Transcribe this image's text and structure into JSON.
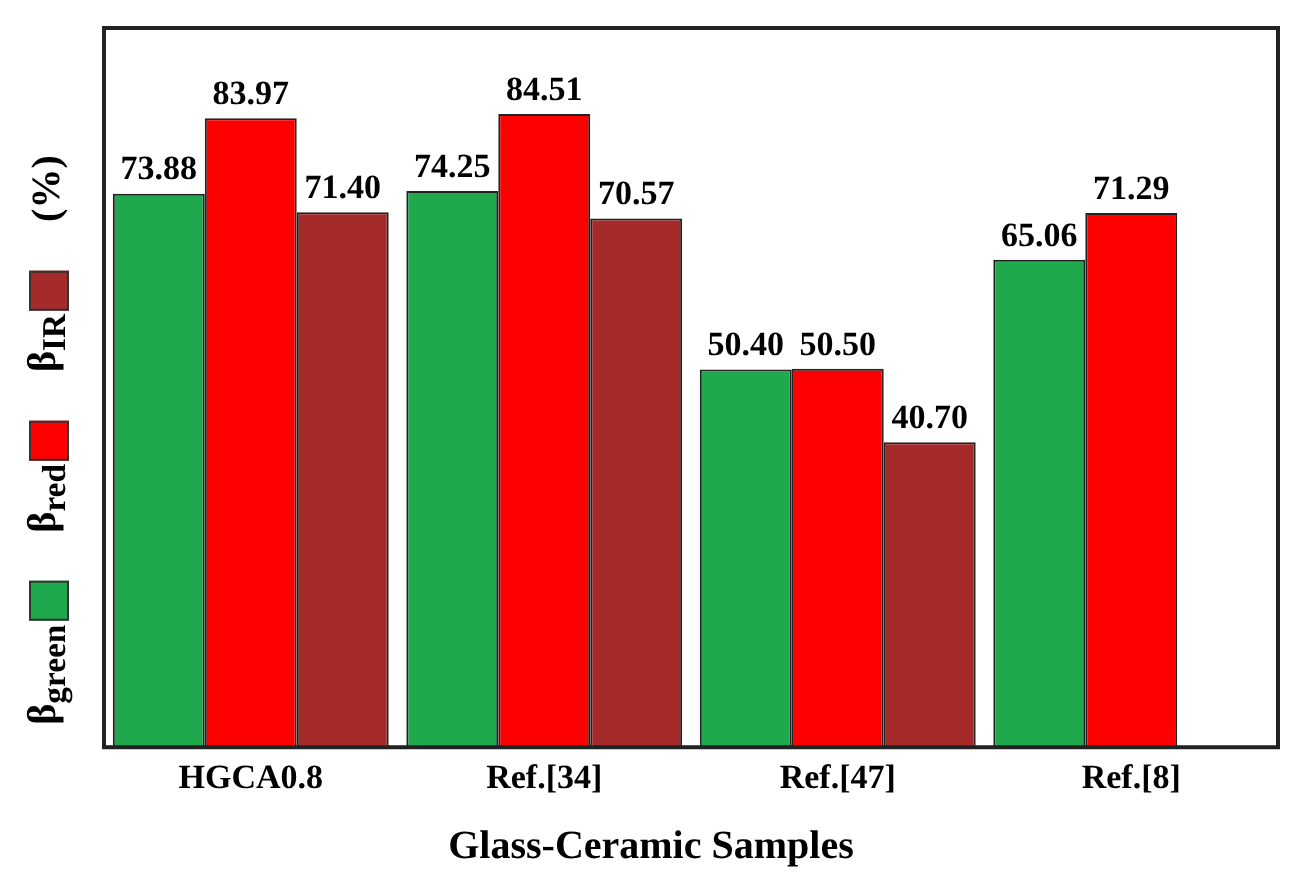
{
  "chart_data": {
    "type": "bar",
    "xlabel": "Glass-Ceramic Samples",
    "ylabel": "(%)",
    "categories": [
      "HGCA0.8",
      "Ref.[34]",
      "Ref.[47]",
      "Ref.[8]"
    ],
    "ylim": [
      0,
      96
    ],
    "tick_labels": "x",
    "legend": "left",
    "grid": false,
    "series": [
      {
        "name": "β$_{green}$",
        "color": "#20a84c",
        "values": [
          73.88,
          74.25,
          50.4,
          65.06
        ],
        "value_labels": [
          "73.88",
          "74.25",
          "50.40",
          "65.06"
        ]
      },
      {
        "name": "β$_{red}$",
        "color": "#ff0000",
        "values": [
          83.97,
          84.51,
          50.5,
          71.29
        ],
        "value_labels": [
          "83.97",
          "84.51",
          "50.50",
          "71.29"
        ]
      },
      {
        "name": "β$_{IR}$",
        "color": "#a52a2a",
        "values": [
          71.4,
          70.57,
          40.7,
          null
        ],
        "value_labels": [
          "71.40",
          "70.57",
          "40.70",
          null
        ]
      }
    ]
  }
}
